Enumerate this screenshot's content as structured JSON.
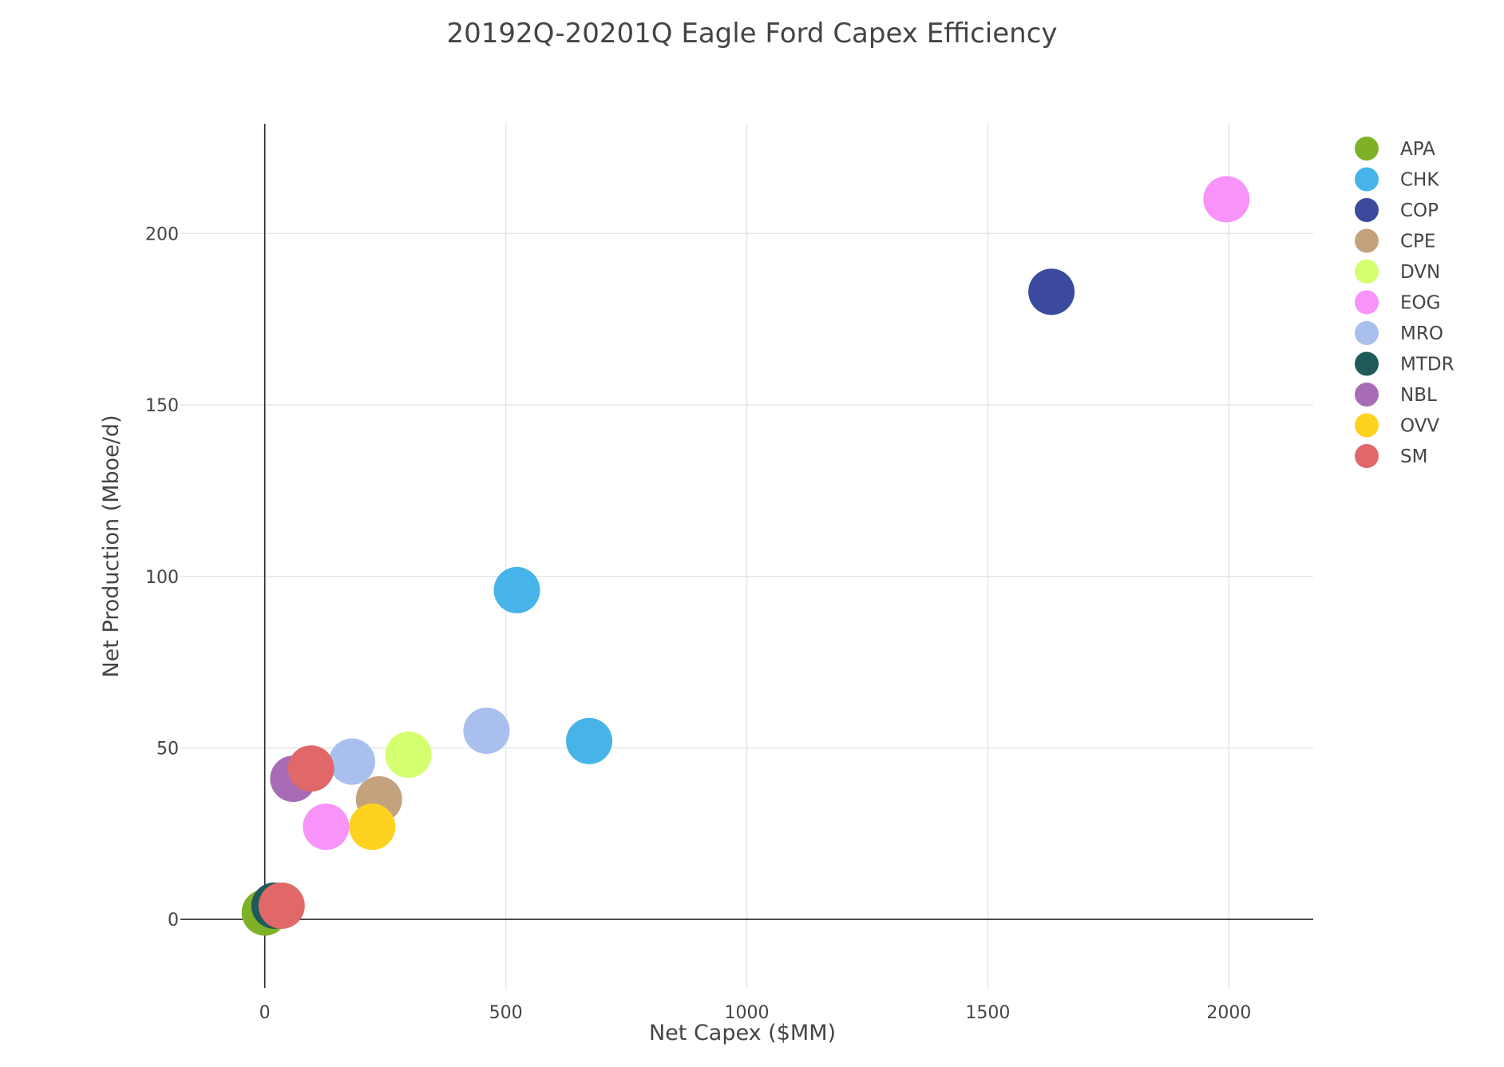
{
  "chart_data": {
    "type": "scatter",
    "title": "20192Q-20201Q Eagle Ford Capex Efficiency",
    "xlabel": "Net Capex ($MM)",
    "ylabel": "Net Production (Mboe/d)",
    "xlim": [
      -175,
      2175
    ],
    "ylim": [
      -20,
      232
    ],
    "x_ticks": [
      0,
      500,
      1000,
      1500,
      2000
    ],
    "y_ticks": [
      0,
      50,
      100,
      150,
      200
    ],
    "grid": true,
    "legend_position": "right",
    "series": [
      {
        "name": "APA",
        "color": "#7fb128",
        "points": [
          {
            "x": 0,
            "y": 2
          }
        ]
      },
      {
        "name": "CHK",
        "color": "#46b4e8",
        "points": [
          {
            "x": 523,
            "y": 96
          },
          {
            "x": 673,
            "y": 52
          }
        ]
      },
      {
        "name": "COP",
        "color": "#3c4a9e",
        "points": [
          {
            "x": 1632,
            "y": 183
          }
        ]
      },
      {
        "name": "CPE",
        "color": "#c4a27e",
        "points": [
          {
            "x": 237,
            "y": 35
          }
        ]
      },
      {
        "name": "DVN",
        "color": "#d4ff6f",
        "points": [
          {
            "x": 298,
            "y": 48
          }
        ]
      },
      {
        "name": "EOG",
        "color": "#f894f9",
        "points": [
          {
            "x": 1995,
            "y": 210
          },
          {
            "x": 127,
            "y": 27
          }
        ]
      },
      {
        "name": "MRO",
        "color": "#a9bfee",
        "points": [
          {
            "x": 460,
            "y": 55
          },
          {
            "x": 181,
            "y": 46
          }
        ]
      },
      {
        "name": "MTDR",
        "color": "#1e5a5a",
        "points": [
          {
            "x": 20,
            "y": 4
          }
        ]
      },
      {
        "name": "NBL",
        "color": "#a86cb7",
        "points": [
          {
            "x": 59,
            "y": 41
          }
        ]
      },
      {
        "name": "OVV",
        "color": "#ffd21f",
        "points": [
          {
            "x": 223,
            "y": 27
          }
        ]
      },
      {
        "name": "SM",
        "color": "#e06868",
        "points": [
          {
            "x": 96,
            "y": 44
          },
          {
            "x": 35,
            "y": 4
          }
        ]
      }
    ]
  }
}
